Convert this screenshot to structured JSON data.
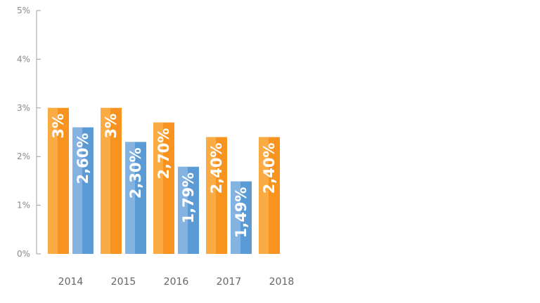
{
  "chart_data": {
    "type": "bar",
    "categories": [
      "2014",
      "2015",
      "2016",
      "2017",
      "2018"
    ],
    "series": [
      {
        "values": [
          3.0,
          3.0,
          2.7,
          2.4,
          2.4
        ],
        "labels": [
          "3%",
          "3%",
          "2,70%",
          "2,40%",
          "2,40%"
        ],
        "color": "#f7931e",
        "highlight": "#fbb24d"
      },
      {
        "values": [
          2.6,
          2.3,
          1.79,
          1.49,
          null
        ],
        "labels": [
          "2,60%",
          "2,30%",
          "1,79%",
          "1,49%",
          ""
        ],
        "color": "#5b9bd5",
        "highlight": "#8fb8e4"
      }
    ],
    "yticks": [
      "0%",
      "1%",
      "2%",
      "3%",
      "4%",
      "5%"
    ],
    "ylim": [
      0,
      5
    ],
    "grid": false,
    "legend": "none",
    "axis_color": "#9e9e9e"
  }
}
